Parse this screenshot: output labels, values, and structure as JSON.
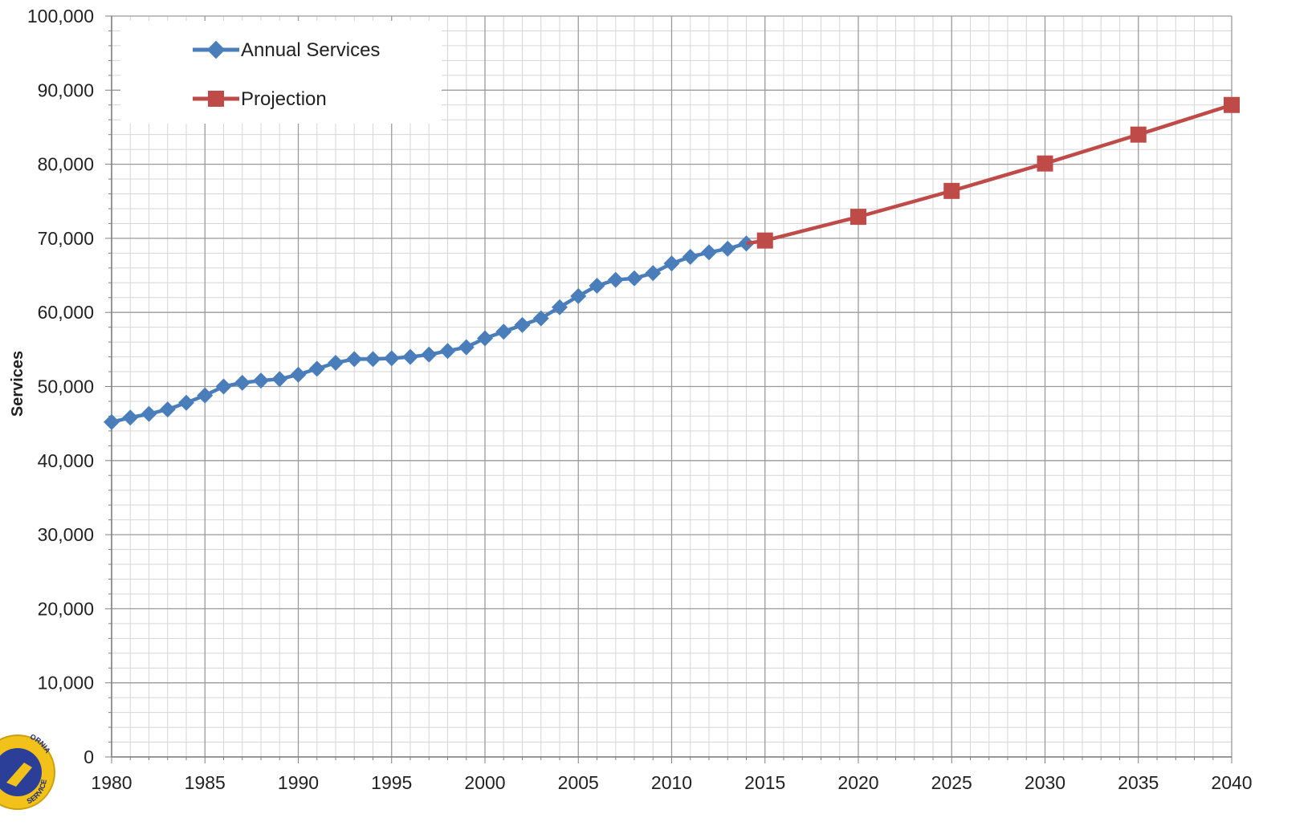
{
  "chart_data": {
    "type": "line",
    "xlabel": "",
    "ylabel": "Services",
    "xlim": [
      1980,
      2040
    ],
    "ylim": [
      0,
      100000
    ],
    "x_ticks": [
      1980,
      1985,
      1990,
      1995,
      2000,
      2005,
      2010,
      2015,
      2020,
      2025,
      2030,
      2035,
      2040
    ],
    "y_ticks": [
      0,
      10000,
      20000,
      30000,
      40000,
      50000,
      60000,
      70000,
      80000,
      90000,
      100000
    ],
    "x_tick_labels": [
      "1980",
      "1985",
      "1990",
      "1995",
      "2000",
      "2005",
      "2010",
      "2015",
      "2020",
      "2025",
      "2030",
      "2035",
      "2040"
    ],
    "y_tick_labels": [
      "0",
      "10,000",
      "20,000",
      "30,000",
      "40,000",
      "50,000",
      "60,000",
      "70,000",
      "80,000",
      "90,000",
      "100,000"
    ],
    "grid": true,
    "legend_position": "top-left",
    "series": [
      {
        "name": "Annual Services",
        "color": "#4a7ebb",
        "marker": "diamond",
        "x": [
          1980,
          1981,
          1982,
          1983,
          1984,
          1985,
          1986,
          1987,
          1988,
          1989,
          1990,
          1991,
          1992,
          1993,
          1994,
          1995,
          1996,
          1997,
          1998,
          1999,
          2000,
          2001,
          2002,
          2003,
          2004,
          2005,
          2006,
          2007,
          2008,
          2009,
          2010,
          2011,
          2012,
          2013,
          2014
        ],
        "y": [
          45200,
          45800,
          46300,
          46900,
          47800,
          48800,
          50000,
          50500,
          50800,
          51000,
          51600,
          52400,
          53200,
          53700,
          53700,
          53800,
          54000,
          54300,
          54800,
          55300,
          56500,
          57400,
          58300,
          59200,
          60700,
          62200,
          63600,
          64400,
          64600,
          65300,
          66600,
          67500,
          68100,
          68600,
          69300
        ]
      },
      {
        "name": "Projection",
        "color": "#be4b48",
        "marker": "square",
        "x": [
          2015,
          2020,
          2025,
          2030,
          2035,
          2040
        ],
        "y": [
          69700,
          72900,
          76400,
          80100,
          84000,
          88000
        ]
      }
    ]
  },
  "logo": {
    "top_text": "ORNIA",
    "bottom_text": "SERVICE"
  }
}
